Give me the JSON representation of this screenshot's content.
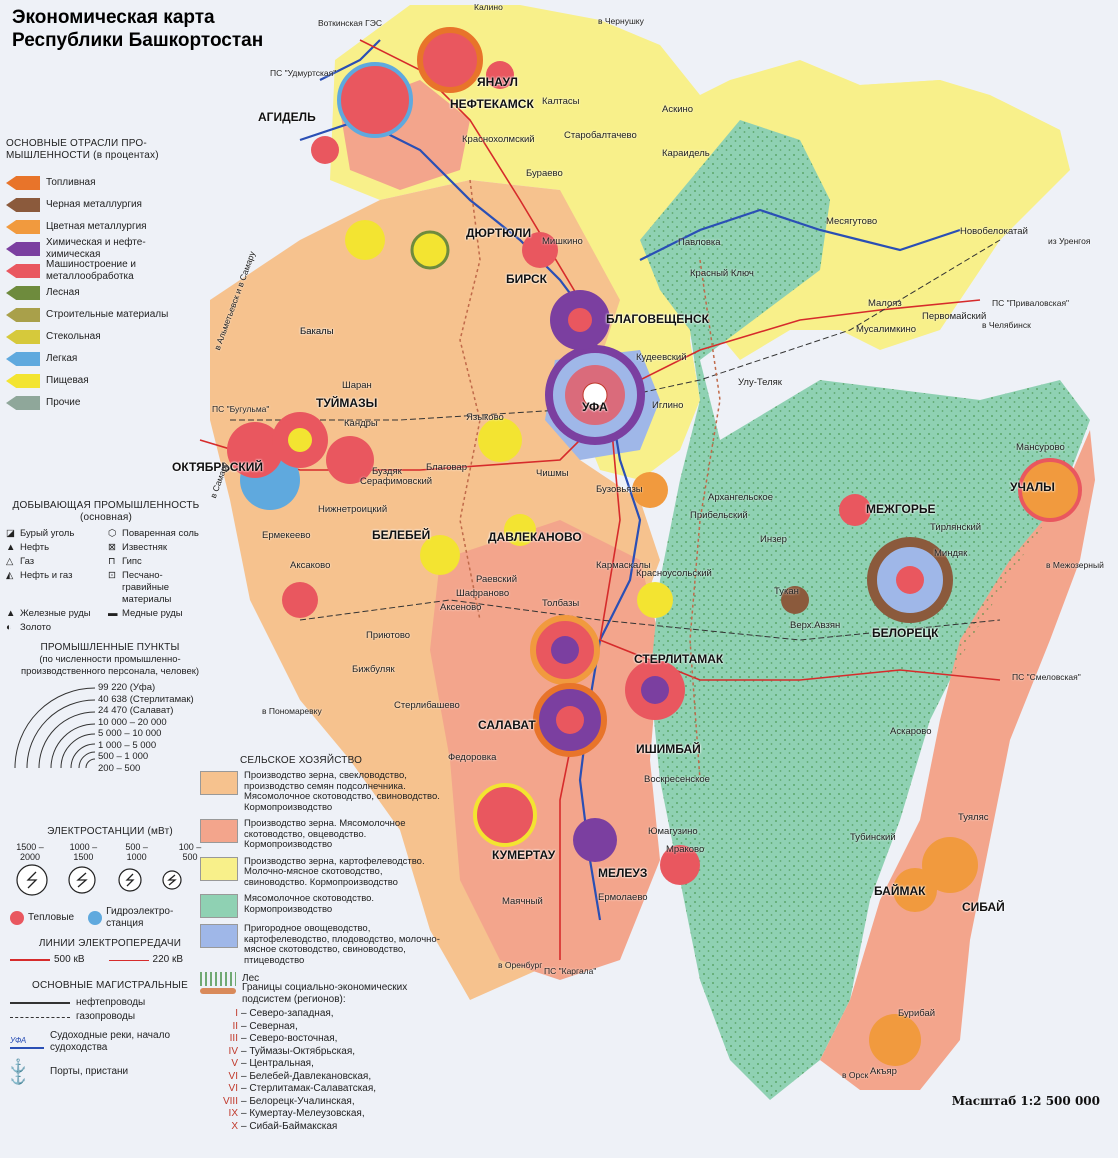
{
  "title_line1": "Экономическая карта",
  "title_line2": "Республики Башкортостан",
  "industry": {
    "heading": "ОСНОВНЫЕ ОТРАСЛИ ПРО-МЫШЛЕННОСТИ (в процентах)",
    "items": [
      {
        "label": "Топливная",
        "color": "#e8742a"
      },
      {
        "label": "Черная металлургия",
        "color": "#8b5a3c"
      },
      {
        "label": "Цветная металлургия",
        "color": "#f19a3e"
      },
      {
        "label": "Химическая и нефте-химическая",
        "color": "#7b3fa0"
      },
      {
        "label": "Машиностроение и металлообработка",
        "color": "#e9575f"
      },
      {
        "label": "Лесная",
        "color": "#6e8b3d"
      },
      {
        "label": "Строительные материалы",
        "color": "#a9a04a"
      },
      {
        "label": "Стекольная",
        "color": "#d6c93b"
      },
      {
        "label": "Легкая",
        "color": "#5fa9de"
      },
      {
        "label": "Пищевая",
        "color": "#f3e431"
      },
      {
        "label": "Прочие",
        "color": "#8fa79a"
      }
    ]
  },
  "mining": {
    "heading": "ДОБЫВАЮЩАЯ ПРОМЫШЛЕННОСТЬ (основная)",
    "items": [
      {
        "label": "Бурый уголь",
        "icon": "brown-coal-icon"
      },
      {
        "label": "Поваренная соль",
        "icon": "salt-icon"
      },
      {
        "label": "Нефть",
        "icon": "oil-icon"
      },
      {
        "label": "Известняк",
        "icon": "limestone-icon"
      },
      {
        "label": "Газ",
        "icon": "gas-icon"
      },
      {
        "label": "Гипс",
        "icon": "gypsum-icon"
      },
      {
        "label": "Нефть и газ",
        "icon": "oil-gas-icon"
      },
      {
        "label": "Песчано-гравийные материалы",
        "icon": "sand-gravel-icon"
      },
      {
        "label": "Железные руды",
        "icon": "iron-ore-icon"
      },
      {
        "label": "Медные руды",
        "icon": "copper-ore-icon"
      },
      {
        "label": "Золото",
        "icon": "gold-icon"
      }
    ]
  },
  "points": {
    "heading": "ПРОМЫШЛЕННЫЕ ПУНКТЫ",
    "sub": "(по численности промышленно-производственного персонала, человек)",
    "items": [
      "99 220 (Уфа)",
      "40 638 (Стерлитамак)",
      "24 470 (Салават)",
      "10 000 – 20 000",
      "5 000 – 10 000",
      "1 000 – 5 000",
      "500 – 1 000",
      "200 – 500"
    ]
  },
  "power": {
    "heading": "ЭЛЕКТРОСТАНЦИИ (мВт)",
    "sizes": [
      "1500 – 2000",
      "1000 – 1500",
      "500 – 1000",
      "100 – 500"
    ],
    "thermal": "Тепловые",
    "hydro": "Гидроэлектро-станция"
  },
  "lines": {
    "heading": "ЛИНИИ ЭЛЕКТРОПЕРЕДАЧИ",
    "kv500": "500 кВ",
    "kv220": "220 кВ"
  },
  "pipes": {
    "heading": "ОСНОВНЫЕ МАГИСТРАЛЬНЫЕ",
    "oil": "нефтепроводы",
    "gas": "газопроводы",
    "rivers": "Судоходные реки, начало судоходства",
    "ports": "Порты, пристани",
    "ufa_sample": "УФА"
  },
  "agriculture": {
    "heading": "СЕЛЬСКОЕ ХОЗЯЙСТВО",
    "items": [
      {
        "label": "Производство зерна, свекловодство, производство семян подсолнечника. Мясомолочное скотоводство, свиноводство. Кормопроизводство",
        "color": "#f6c28e"
      },
      {
        "label": "Производство зерна. Мясомолочное скотоводство, овцеводство. Кормопроизводство",
        "color": "#f3a58c"
      },
      {
        "label": "Производство зерна, картофелеводство. Молочно-мясное скотоводство, свиноводство. Кормопроизводство",
        "color": "#f8f08a"
      },
      {
        "label": "Мясомолочное скотоводство. Кормопроизводство",
        "color": "#8fd1b3"
      },
      {
        "label": "Пригородное овощеводство, картофелеводство, плодоводство, молочно-мясное скотоводство, свиноводство, птицеводство",
        "color": "#9fb7e8"
      }
    ],
    "forest": "Лес"
  },
  "regions": {
    "heading": "Границы социально-экономических подсистем (регионов):",
    "items": [
      {
        "num": "I",
        "name": "Северо-западная,"
      },
      {
        "num": "II",
        "name": "Северная,"
      },
      {
        "num": "III",
        "name": "Северо-восточная,"
      },
      {
        "num": "IV",
        "name": "Туймазы-Октябрьская,"
      },
      {
        "num": "V",
        "name": "Центральная,"
      },
      {
        "num": "VI",
        "name": "Белебей-Давлекановская,"
      },
      {
        "num": "VI",
        "name": "Стерлитамак-Салаватская,"
      },
      {
        "num": "VIII",
        "name": "Белорецк-Учалинская,"
      },
      {
        "num": "IX",
        "name": "Кумертау-Мелеузовская,"
      },
      {
        "num": "X",
        "name": "Сибай-Баймакская"
      }
    ]
  },
  "scale": "Масштаб 1:2 500 000",
  "cities": [
    "УФА",
    "СТЕРЛИТАМАК",
    "САЛАВАТ",
    "ИШИМБАЙ",
    "КУМЕРТАУ",
    "МЕЛЕУЗ",
    "ОКТЯБРЬСКИЙ",
    "ТУЙМАЗЫ",
    "БЕЛЕБЕЙ",
    "ДАВЛЕКАНОВО",
    "БЕЛОРЕЦК",
    "МЕЖГОРЬЕ",
    "УЧАЛЫ",
    "СИБАЙ",
    "БАЙМАК",
    "БИРСК",
    "БЛАГОВЕЩЕНСК",
    "НЕФТЕКАМСК",
    "АГИДЕЛЬ",
    "ЯНАУЛ",
    "ДЮРТЮЛИ",
    "Кандры",
    "Чишмы",
    "Серафимовский",
    "Нижнетроицкий",
    "Раевский",
    "Шафраново",
    "Аксеново",
    "Приютово",
    "Аксаково",
    "Красноусольский",
    "Инзер",
    "Тукан",
    "Миндяк",
    "Тирлянский",
    "Кудеевский",
    "Иглино",
    "Улу-Теляк",
    "Павловка",
    "Красный Ключ",
    "Мишкино",
    "Бураево",
    "Краснохолмский",
    "Юмагузино",
    "Ермолаево",
    "Мраково",
    "Акъяр",
    "Бурибай",
    "Туяляс",
    "Первомайский",
    "Мусалимкино",
    "Новобелокатай",
    "Месягутово",
    "Малояз",
    "Аскарово",
    "Тубинский",
    "Кармаскалы",
    "Толбазы",
    "Федоровка",
    "Стерлибашево",
    "Бижбуляк",
    "Ермекеево",
    "Шаран",
    "Бакалы",
    "Языково",
    "Бузовьязы",
    "Архангельское",
    "Прибельский",
    "Верх.Авзян",
    "Мансурово",
    "Воскресенское",
    "Маячный",
    "Калтасы",
    "Аскино",
    "Караидель",
    "Старобалтачево",
    "Бакалы",
    "Буздяк",
    "Благовар"
  ],
  "annotations": [
    "Воткинская ГЭС",
    "ПС \"Удмуртская\"",
    "ПС \"Приваловская\"",
    "ПС \"Бугульма\"",
    "ПС \"Смеловская\"",
    "ПС \"Каргала\"",
    "в Чернушку",
    "в Челябинск",
    "из Уренгоя",
    "в Альметьевск и в Самару",
    "в Самару",
    "в Межозерный",
    "в Пономаревку",
    "в Оренбург",
    "в Орск",
    "Калино"
  ]
}
